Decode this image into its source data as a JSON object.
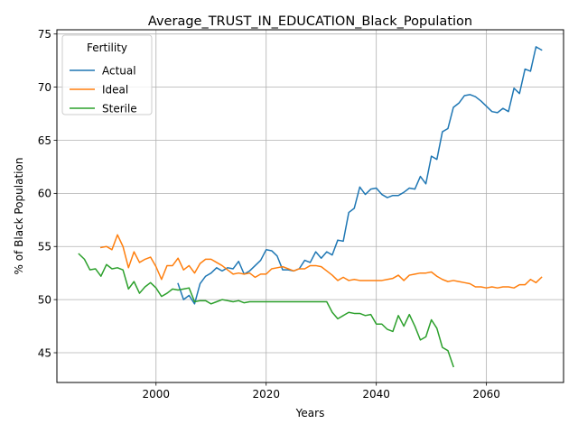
{
  "chart_data": {
    "type": "line",
    "title": "Average_TRUST_IN_EDUCATION_Black_Population",
    "xlabel": "Years",
    "ylabel": "% of Black Population",
    "xlim": [
      1982,
      2074
    ],
    "ylim": [
      42.2,
      75.4
    ],
    "xticks": [
      2000,
      2020,
      2040,
      2060
    ],
    "yticks": [
      45,
      50,
      55,
      60,
      65,
      70,
      75
    ],
    "grid": true,
    "legend": {
      "title": "Fertility",
      "placement": "top-left"
    },
    "colors": {
      "Actual": "#1f77b4",
      "Ideal": "#ff7f0e",
      "Sterile": "#2ca02c"
    },
    "series": [
      {
        "name": "Actual",
        "x": [
          2004,
          2005,
          2006,
          2007,
          2008,
          2009,
          2010,
          2011,
          2012,
          2013,
          2014,
          2015,
          2016,
          2017,
          2018,
          2019,
          2020,
          2021,
          2022,
          2023,
          2024,
          2025,
          2026,
          2027,
          2028,
          2029,
          2030,
          2031,
          2032,
          2033,
          2034,
          2035,
          2036,
          2037,
          2038,
          2039,
          2040,
          2041,
          2042,
          2043,
          2044,
          2045,
          2046,
          2047,
          2048,
          2049,
          2050,
          2051,
          2052,
          2053,
          2054,
          2055,
          2056,
          2057,
          2058,
          2059,
          2060,
          2061,
          2062,
          2063,
          2064,
          2065,
          2066,
          2067,
          2068,
          2069,
          2070
        ],
        "y": [
          51.5,
          50.0,
          50.4,
          49.6,
          51.5,
          52.2,
          52.5,
          53.0,
          52.7,
          53.0,
          52.9,
          53.6,
          52.4,
          52.7,
          53.2,
          53.7,
          54.7,
          54.6,
          54.1,
          52.8,
          52.8,
          52.7,
          52.9,
          53.7,
          53.5,
          54.5,
          53.9,
          54.5,
          54.2,
          55.6,
          55.5,
          58.2,
          58.6,
          60.6,
          59.9,
          60.4,
          60.5,
          59.9,
          59.6,
          59.8,
          59.8,
          60.1,
          60.5,
          60.4,
          61.6,
          60.9,
          63.5,
          63.2,
          65.8,
          66.1,
          68.1,
          68.5,
          69.2,
          69.3,
          69.1,
          68.7,
          68.2,
          67.7,
          67.6,
          68.0,
          67.7,
          69.9,
          69.4,
          71.7,
          71.5,
          73.8,
          73.5
        ]
      },
      {
        "name": "Ideal",
        "x": [
          1990,
          1991,
          1992,
          1993,
          1994,
          1995,
          1996,
          1997,
          1998,
          1999,
          2000,
          2001,
          2002,
          2003,
          2004,
          2005,
          2006,
          2007,
          2008,
          2009,
          2010,
          2011,
          2012,
          2013,
          2014,
          2015,
          2016,
          2017,
          2018,
          2019,
          2020,
          2021,
          2022,
          2023,
          2024,
          2025,
          2026,
          2027,
          2028,
          2029,
          2030,
          2031,
          2032,
          2033,
          2034,
          2035,
          2036,
          2037,
          2038,
          2039,
          2040,
          2041,
          2042,
          2043,
          2044,
          2045,
          2046,
          2047,
          2048,
          2049,
          2050,
          2051,
          2052,
          2053,
          2054,
          2055,
          2056,
          2057,
          2058,
          2059,
          2060,
          2061,
          2062,
          2063,
          2064,
          2065,
          2066,
          2067,
          2068,
          2069,
          2070
        ],
        "y": [
          54.9,
          55.0,
          54.7,
          56.1,
          55.0,
          53.0,
          54.5,
          53.5,
          53.8,
          54.0,
          53.1,
          51.9,
          53.2,
          53.2,
          53.9,
          52.8,
          53.2,
          52.5,
          53.4,
          53.8,
          53.8,
          53.5,
          53.2,
          52.8,
          52.4,
          52.5,
          52.4,
          52.5,
          52.1,
          52.4,
          52.4,
          52.9,
          53.0,
          53.1,
          52.9,
          52.7,
          52.9,
          52.9,
          53.2,
          53.2,
          53.1,
          52.7,
          52.3,
          51.8,
          52.1,
          51.8,
          51.9,
          51.8,
          51.8,
          51.8,
          51.8,
          51.8,
          51.9,
          52.0,
          52.3,
          51.8,
          52.3,
          52.4,
          52.5,
          52.5,
          52.6,
          52.2,
          51.9,
          51.7,
          51.8,
          51.7,
          51.6,
          51.5,
          51.2,
          51.2,
          51.1,
          51.2,
          51.1,
          51.2,
          51.2,
          51.1,
          51.4,
          51.4,
          51.9,
          51.6,
          52.1
        ]
      },
      {
        "name": "Sterile",
        "x": [
          1986,
          1987,
          1988,
          1989,
          1990,
          1991,
          1992,
          1993,
          1994,
          1995,
          1996,
          1997,
          1998,
          1999,
          2000,
          2001,
          2002,
          2003,
          2004,
          2005,
          2006,
          2007,
          2008,
          2009,
          2010,
          2011,
          2012,
          2013,
          2014,
          2015,
          2016,
          2017,
          2018,
          2019,
          2020,
          2021,
          2022,
          2023,
          2024,
          2025,
          2026,
          2027,
          2028,
          2029,
          2030,
          2031,
          2032,
          2033,
          2034,
          2035,
          2036,
          2037,
          2038,
          2039,
          2040,
          2041,
          2042,
          2043,
          2044,
          2045,
          2046,
          2047,
          2048,
          2049,
          2050,
          2051,
          2052,
          2053,
          2054
        ],
        "y": [
          54.3,
          53.8,
          52.8,
          52.9,
          52.2,
          53.3,
          52.9,
          53.0,
          52.8,
          51.0,
          51.7,
          50.6,
          51.2,
          51.6,
          51.1,
          50.3,
          50.6,
          51.0,
          50.9,
          51.0,
          51.1,
          49.8,
          49.9,
          49.9,
          49.6,
          49.8,
          50.0,
          49.9,
          49.8,
          49.9,
          49.7,
          49.8,
          49.8,
          49.8,
          49.8,
          49.8,
          49.8,
          49.8,
          49.8,
          49.8,
          49.8,
          49.8,
          49.8,
          49.8,
          49.8,
          49.8,
          48.8,
          48.2,
          48.5,
          48.8,
          48.7,
          48.7,
          48.5,
          48.6,
          47.7,
          47.7,
          47.2,
          47.0,
          48.5,
          47.5,
          48.6,
          47.5,
          46.2,
          46.5,
          48.1,
          47.3,
          45.5,
          45.2,
          43.7
        ]
      }
    ]
  }
}
